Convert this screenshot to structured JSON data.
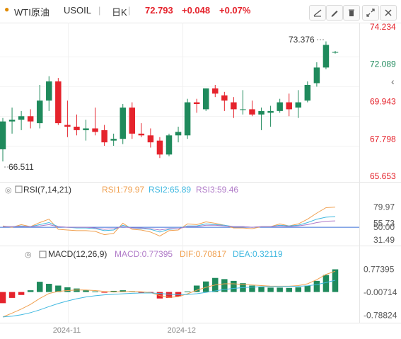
{
  "header": {
    "symbol_cn": "WTI原油",
    "symbol_code": "USOIL",
    "period": "日K",
    "price": "72.793",
    "change": "+0.048",
    "change_pct": "+0.07%",
    "icons": [
      "drawing-line-icon",
      "pen-icon",
      "trash-icon",
      "expand-icon",
      "close-icon"
    ]
  },
  "price_panel": {
    "high_annotation": "73.376",
    "low_annotation": "66.511",
    "collapse_icon": "‹"
  },
  "rsi_panel": {
    "title": "RSI(7,14,21)",
    "rsi1": "RSI1:79.97",
    "rsi2": "RSI2:65.89",
    "rsi3": "RSI3:59.46"
  },
  "macd_panel": {
    "title": "MACD(12,26,9)",
    "macd": "MACD:0.77395",
    "dif": "DIF:0.70817",
    "dea": "DEA:0.32119"
  },
  "colors": {
    "up": "#1f8a5c",
    "down": "#e5232c",
    "rsi1": "#f0a050",
    "rsi2": "#40b8e0",
    "rsi3": "#b07ac8",
    "dif": "#f0a050",
    "dea": "#40b8e0",
    "price_up_text": "#e5232c"
  },
  "chart_data": [
    {
      "type": "candlestick",
      "y_ticks": [
        "74.234",
        "72.089",
        "69.943",
        "67.798",
        "65.653"
      ],
      "ylim": [
        65.653,
        74.234
      ],
      "x_ticks": [
        "2024-11",
        "2024-12"
      ],
      "candles": [
        {
          "o": 67.2,
          "h": 69.0,
          "l": 66.5,
          "c": 68.8
        },
        {
          "o": 68.8,
          "h": 69.6,
          "l": 68.1,
          "c": 68.9
        },
        {
          "o": 68.9,
          "h": 69.4,
          "l": 68.3,
          "c": 69.1
        },
        {
          "o": 69.1,
          "h": 69.5,
          "l": 68.4,
          "c": 68.8
        },
        {
          "o": 68.7,
          "h": 70.9,
          "l": 68.4,
          "c": 70.0
        },
        {
          "o": 70.0,
          "h": 71.4,
          "l": 69.4,
          "c": 71.1
        },
        {
          "o": 71.1,
          "h": 71.3,
          "l": 68.6,
          "c": 68.7
        },
        {
          "o": 68.6,
          "h": 70.0,
          "l": 67.9,
          "c": 68.5
        },
        {
          "o": 68.5,
          "h": 69.2,
          "l": 68.0,
          "c": 68.3
        },
        {
          "o": 68.3,
          "h": 68.9,
          "l": 67.7,
          "c": 68.4
        },
        {
          "o": 68.4,
          "h": 69.6,
          "l": 68.0,
          "c": 68.2
        },
        {
          "o": 68.3,
          "h": 68.6,
          "l": 67.4,
          "c": 67.6
        },
        {
          "o": 67.7,
          "h": 68.1,
          "l": 67.4,
          "c": 67.8
        },
        {
          "o": 67.8,
          "h": 69.8,
          "l": 67.5,
          "c": 69.6
        },
        {
          "o": 69.6,
          "h": 69.9,
          "l": 67.8,
          "c": 68.1
        },
        {
          "o": 68.1,
          "h": 68.7,
          "l": 67.9,
          "c": 68.0
        },
        {
          "o": 68.0,
          "h": 68.4,
          "l": 67.3,
          "c": 67.6
        },
        {
          "o": 67.7,
          "h": 67.9,
          "l": 66.7,
          "c": 66.9
        },
        {
          "o": 66.9,
          "h": 68.1,
          "l": 66.8,
          "c": 68.0
        },
        {
          "o": 68.0,
          "h": 68.5,
          "l": 67.6,
          "c": 68.2
        },
        {
          "o": 68.0,
          "h": 70.1,
          "l": 67.8,
          "c": 69.9
        },
        {
          "o": 69.9,
          "h": 70.1,
          "l": 69.3,
          "c": 69.8
        },
        {
          "o": 69.5,
          "h": 70.7,
          "l": 69.4,
          "c": 70.7
        },
        {
          "o": 70.7,
          "h": 70.9,
          "l": 70.2,
          "c": 70.4
        },
        {
          "o": 70.3,
          "h": 70.5,
          "l": 69.4,
          "c": 70.0
        },
        {
          "o": 69.9,
          "h": 70.2,
          "l": 69.0,
          "c": 69.5
        },
        {
          "o": 69.5,
          "h": 70.6,
          "l": 69.2,
          "c": 69.5
        },
        {
          "o": 69.5,
          "h": 70.0,
          "l": 69.1,
          "c": 69.2
        },
        {
          "o": 69.2,
          "h": 69.6,
          "l": 68.3,
          "c": 69.4
        },
        {
          "o": 69.3,
          "h": 69.7,
          "l": 68.5,
          "c": 69.4
        },
        {
          "o": 69.4,
          "h": 70.1,
          "l": 69.3,
          "c": 69.9
        },
        {
          "o": 69.9,
          "h": 70.4,
          "l": 69.1,
          "c": 69.5
        },
        {
          "o": 69.6,
          "h": 70.6,
          "l": 69.0,
          "c": 69.9
        },
        {
          "o": 70.0,
          "h": 71.1,
          "l": 69.9,
          "c": 70.9
        },
        {
          "o": 71.0,
          "h": 72.2,
          "l": 70.8,
          "c": 71.9
        },
        {
          "o": 71.9,
          "h": 73.4,
          "l": 71.8,
          "c": 73.2
        },
        {
          "o": 72.75,
          "h": 72.85,
          "l": 72.7,
          "c": 72.793
        }
      ]
    },
    {
      "type": "line",
      "name": "RSI",
      "y_ticks": [
        "79.97",
        "55.73",
        "50.00",
        "31.49"
      ],
      "ylim": [
        25,
        90
      ],
      "series": [
        {
          "name": "RSI1",
          "values": [
            52,
            50,
            54,
            51,
            57,
            62,
            47,
            46,
            45,
            45,
            44,
            39,
            41,
            56,
            47,
            46,
            43,
            37,
            45,
            46,
            55,
            54,
            58,
            56,
            53,
            49,
            49,
            48,
            51,
            51,
            55,
            52,
            55,
            62,
            71,
            79,
            79.97
          ]
        },
        {
          "name": "RSI2",
          "values": [
            51,
            51,
            52,
            51,
            54,
            57,
            51,
            50,
            49,
            49,
            48,
            45,
            46,
            53,
            49,
            48,
            47,
            43,
            47,
            48,
            52,
            52,
            55,
            54,
            53,
            51,
            51,
            50,
            51,
            51,
            53,
            52,
            53,
            57,
            62,
            65,
            65.89
          ]
        },
        {
          "name": "RSI3",
          "values": [
            51,
            51,
            51,
            51,
            52,
            54,
            51,
            50,
            50,
            50,
            49,
            47,
            48,
            51,
            49,
            49,
            48,
            46,
            48,
            48,
            51,
            51,
            53,
            53,
            52,
            51,
            51,
            50,
            51,
            51,
            52,
            51,
            52,
            54,
            57,
            59,
            59.46
          ]
        }
      ]
    },
    {
      "type": "bar",
      "name": "MACD",
      "y_ticks": [
        "0.77395",
        "-0.00714",
        "-0.78824"
      ],
      "ylim": [
        -0.95,
        0.98
      ],
      "histogram": [
        -0.38,
        -0.2,
        -0.1,
        0.06,
        0.35,
        0.28,
        0.22,
        0.16,
        0.12,
        0.06,
        0.02,
        -0.01,
        0.04,
        0.06,
        0.03,
        -0.01,
        -0.03,
        -0.22,
        -0.2,
        -0.15,
        0.02,
        0.22,
        0.36,
        0.48,
        0.44,
        0.38,
        0.3,
        0.22,
        0.18,
        0.15,
        0.15,
        0.14,
        0.16,
        0.22,
        0.38,
        0.58,
        0.77395
      ],
      "dif": [
        -0.85,
        -0.72,
        -0.58,
        -0.42,
        -0.22,
        -0.05,
        0.02,
        0.05,
        0.07,
        0.07,
        0.05,
        0.02,
        0.0,
        0.01,
        0.02,
        0.01,
        -0.02,
        -0.12,
        -0.18,
        -0.16,
        -0.06,
        0.06,
        0.16,
        0.24,
        0.28,
        0.28,
        0.26,
        0.24,
        0.22,
        0.2,
        0.2,
        0.2,
        0.22,
        0.28,
        0.42,
        0.6,
        0.70817
      ]
    }
  ]
}
